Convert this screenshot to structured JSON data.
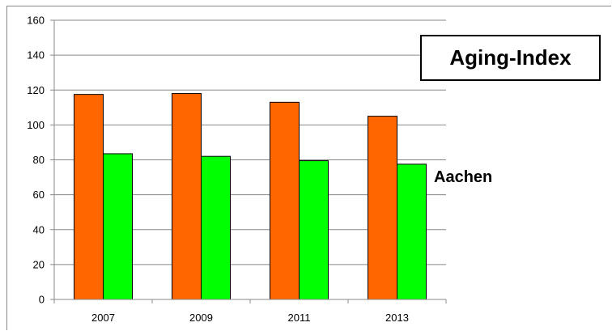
{
  "chart_data": {
    "type": "bar",
    "title": "Aging-Index",
    "annotation": "Aachen",
    "categories": [
      "2007",
      "2009",
      "2011",
      "2013"
    ],
    "series": [
      {
        "values": [
          117.5,
          118,
          113,
          105
        ],
        "color": "#ff6600"
      },
      {
        "values": [
          83.5,
          82,
          79.5,
          77.5
        ],
        "color": "#00ff00"
      }
    ],
    "ylim": [
      0,
      160
    ],
    "yticks": [
      "0",
      "20",
      "40",
      "60",
      "80",
      "100",
      "120",
      "140",
      "160"
    ],
    "grid": true
  }
}
